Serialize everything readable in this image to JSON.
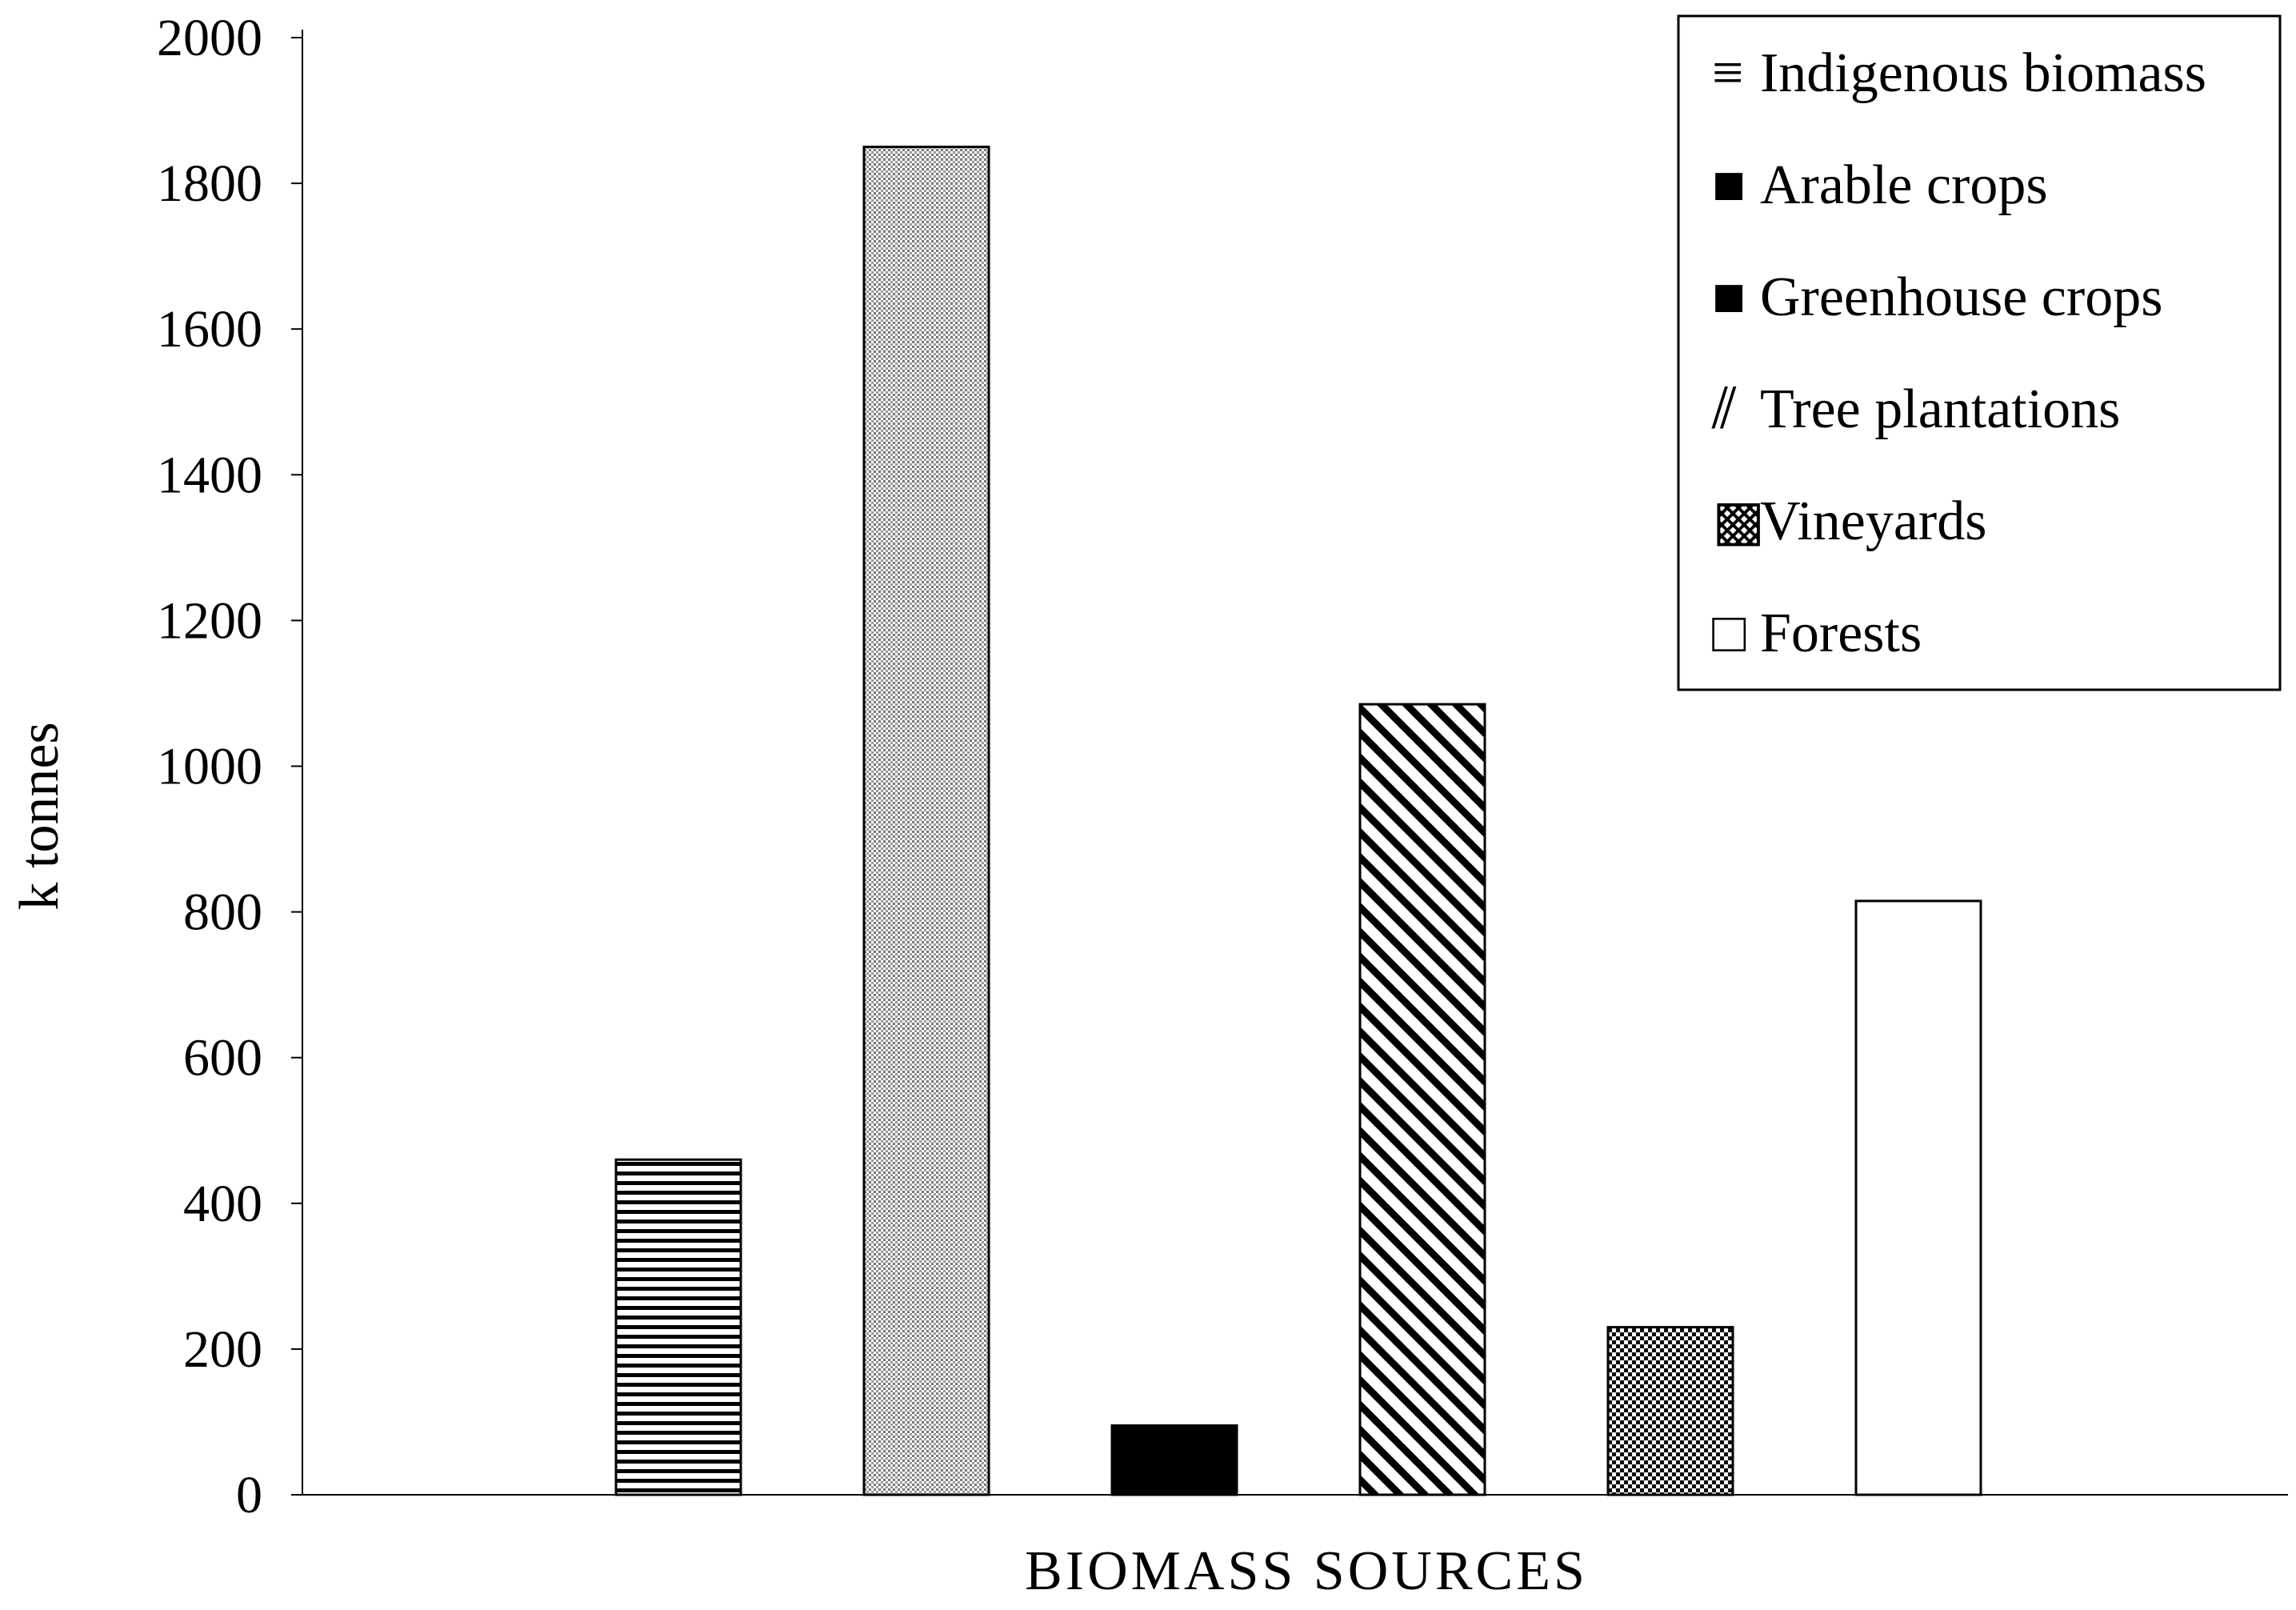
{
  "chart_data": {
    "type": "bar",
    "title": "",
    "xlabel": "BIOMASS SOURCES",
    "ylabel": "k tonnes",
    "ylim": [
      0,
      2000
    ],
    "yticks": [
      0,
      200,
      400,
      600,
      800,
      1000,
      1200,
      1400,
      1600,
      1800,
      2000
    ],
    "grid": false,
    "legend_position": "top-right",
    "series": [
      {
        "name": "Indigenous biomass",
        "value": 460,
        "pattern": "horizontal-lines",
        "legend_icon": "≡"
      },
      {
        "name": "Arable crops",
        "value": 1850,
        "pattern": "fine-dots",
        "legend_icon": "■"
      },
      {
        "name": "Greenhouse crops",
        "value": 95,
        "pattern": "solid-black",
        "legend_icon": "■"
      },
      {
        "name": "Tree plantations",
        "value": 1085,
        "pattern": "diagonal-lines",
        "legend_icon": "⫽"
      },
      {
        "name": "Vineyards",
        "value": 230,
        "pattern": "checkerboard",
        "legend_icon": "▩"
      },
      {
        "name": "Forests",
        "value": 815,
        "pattern": "white",
        "legend_icon": "□"
      }
    ]
  }
}
